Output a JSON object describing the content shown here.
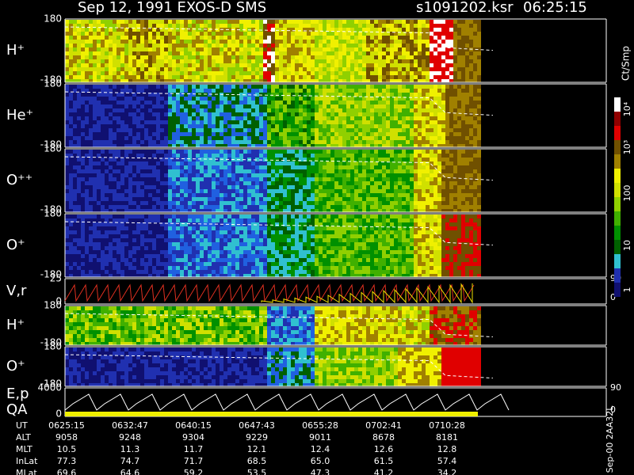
{
  "header": {
    "title": "Sep 12, 1991    EXOS-D SMS",
    "file": "s1091202.ksr",
    "time": "06:25:15"
  },
  "colorbar": {
    "label": "Ct/Smp",
    "ticks": [
      "1",
      "10",
      "100",
      "10³",
      "10⁴"
    ]
  },
  "panels": [
    {
      "label": "H⁺",
      "top": "180",
      "bottom": "-180"
    },
    {
      "label": "He⁺",
      "top": "180",
      "bottom": "-180"
    },
    {
      "label": "O⁺⁺",
      "top": "180",
      "bottom": "-180"
    },
    {
      "label": "O⁺",
      "top": "180",
      "bottom": "-180"
    },
    {
      "label": "V,r",
      "top": "25",
      "bottom": "0",
      "right_top": "90",
      "right_bottom": "0"
    },
    {
      "label": "H⁺",
      "top": "180",
      "bottom": "-180"
    },
    {
      "label": "O⁺",
      "top": "180",
      "bottom": "-180"
    },
    {
      "label": "E,p",
      "label2": "QA",
      "top": "4000",
      "bottom": "0",
      "right_top": "90",
      "right_bottom": "0"
    }
  ],
  "table": {
    "rows": [
      [
        "UT",
        "0625:15",
        "0632:47",
        "0640:15",
        "0647:43",
        "0655:28",
        "0702:41",
        "0710:28"
      ],
      [
        "ALT",
        "9058",
        "9248",
        "9304",
        "9229",
        "9011",
        "8678",
        "8181"
      ],
      [
        "MLT",
        "10.5",
        "11.3",
        "11.7",
        "12.1",
        "12.4",
        "12.6",
        "12.8"
      ],
      [
        "InLat",
        "77.3",
        "74.7",
        "71.7",
        "68.5",
        "65.0",
        "61.5",
        "57.4"
      ],
      [
        "MLat",
        "69.6",
        "64.6",
        "59.2",
        "53.5",
        "47.3",
        "41.2",
        "34.2"
      ]
    ]
  },
  "side_note": "Sep-00  2AA32L"
}
